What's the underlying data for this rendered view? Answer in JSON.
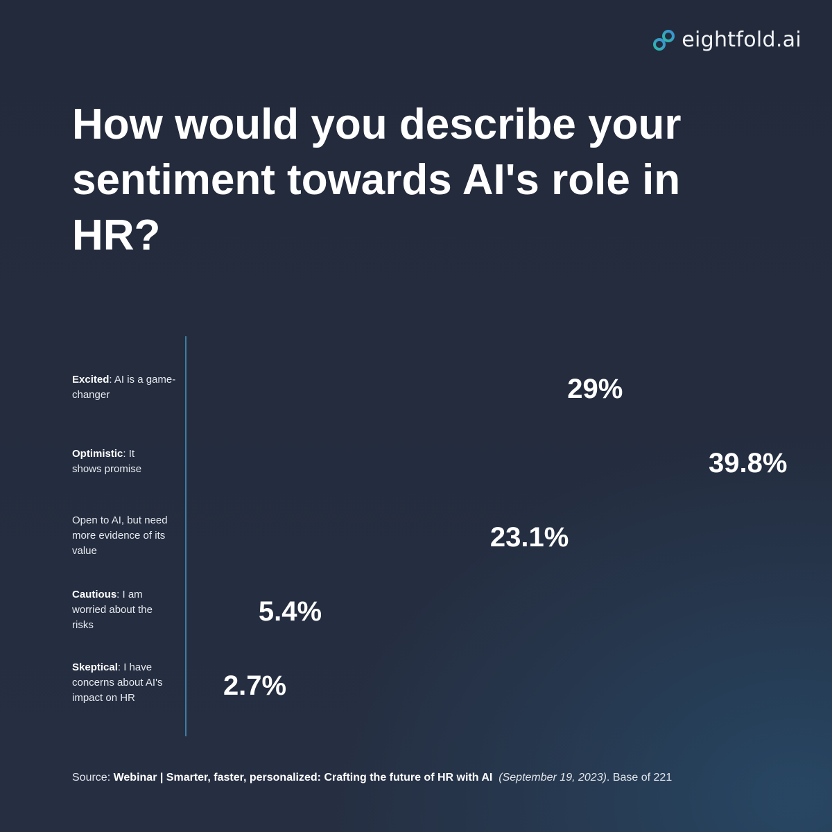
{
  "brand": {
    "name": "eightfold.ai",
    "logo_icon": "infinity-loop-icon",
    "colors": {
      "logo_left": "#2fb9a8",
      "logo_right": "#3b8fd6"
    }
  },
  "colors": {
    "background": "#232b3d",
    "axis_line": "#3d7ea4",
    "text": "#ffffff"
  },
  "chart_data": {
    "type": "bar",
    "title": "How would you describe your sentiment towards AI's role in HR?",
    "unit": "%",
    "xlim": [
      0,
      45
    ],
    "bars_visible": false,
    "categories": [
      {
        "bold": "Excited",
        "rest": ": AI is a game-changer",
        "value": 29,
        "value_label": "29%"
      },
      {
        "bold": "Optimistic",
        "rest": ": It shows promise",
        "value": 39.8,
        "value_label": "39.8%"
      },
      {
        "bold": "",
        "rest": "Open to AI, but need more evidence of its value",
        "value": 23.1,
        "value_label": "23.1%"
      },
      {
        "bold": "Cautious",
        "rest": ": I am worried about the risks",
        "value": 5.4,
        "value_label": "5.4%"
      },
      {
        "bold": "Skeptical",
        "rest": ": I have concerns about AI's impact on HR",
        "value": 2.7,
        "value_label": "2.7%"
      }
    ]
  },
  "footer": {
    "prefix": "Source: ",
    "source_bold": "Webinar | Smarter, faster, personalized: Crafting the future of HR with AI",
    "date_italic": "(September 19, 2023)",
    "suffix": ". Base of 221"
  }
}
